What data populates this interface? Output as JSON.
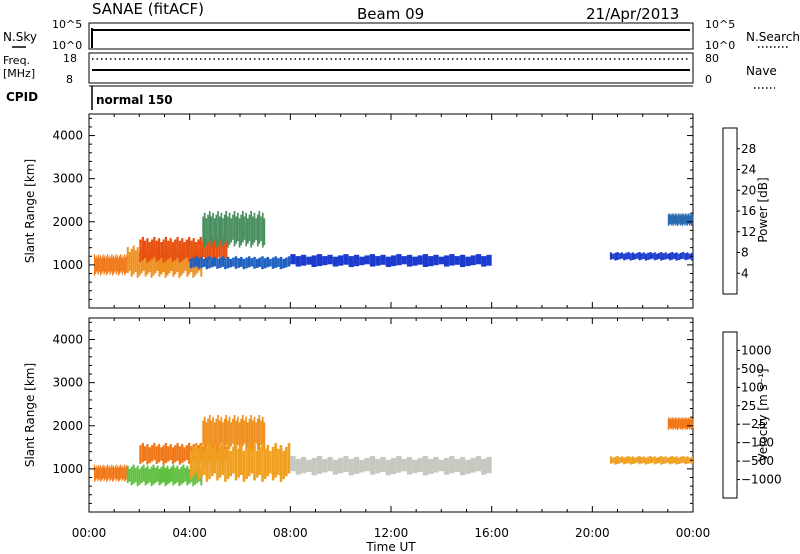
{
  "header": {
    "station": "SANAE (fitACF)",
    "beam": "Beam 09",
    "date": "21/Apr/2013"
  },
  "panels": {
    "nsky": {
      "label": "N.Sky",
      "ticks": [
        "10^5",
        "10^0"
      ],
      "right_ticks": [
        "10^5",
        "10^0"
      ],
      "right_label": "N.Search"
    },
    "freq": {
      "label_top": "Freq.",
      "label_unit": "[MHz]",
      "ticks": [
        "18",
        "8"
      ],
      "right_ticks": [
        "80",
        "0"
      ],
      "right_label": "Nave"
    },
    "cpid": {
      "label": "CPID",
      "mode": "normal 150"
    }
  },
  "chart_data": [
    {
      "type": "heatmap",
      "name": "power",
      "xlabel": "",
      "ylabel": "Slant Range [km]",
      "xlim": [
        0,
        24
      ],
      "ylim": [
        0,
        4500
      ],
      "yticks": [
        1000,
        2000,
        3000,
        4000
      ],
      "xticks_hours": [
        0,
        4,
        8,
        12,
        16,
        20,
        24
      ],
      "colorbar": {
        "label": "Power [dB]",
        "ticks": [
          "4",
          "8",
          "12",
          "16",
          "20",
          "24",
          "28"
        ],
        "colors": [
          "#0020d8",
          "#2d64c8",
          "#3a8070",
          "#40a060",
          "#f0c020",
          "#f09020",
          "#f06010",
          "#e83010",
          "#e00000"
        ]
      },
      "bands": [
        {
          "t0": 0.2,
          "t1": 1.5,
          "r0": 750,
          "r1": 1250,
          "color": "#f07818"
        },
        {
          "t0": 1.5,
          "t1": 4.5,
          "r0": 700,
          "r1": 1450,
          "color": "#f09020"
        },
        {
          "t0": 2.0,
          "t1": 5.5,
          "r0": 1050,
          "r1": 1650,
          "color": "#e85010"
        },
        {
          "t0": 4.5,
          "t1": 7.0,
          "r0": 1400,
          "r1": 2250,
          "color": "#4a9060"
        },
        {
          "t0": 4.0,
          "t1": 8.0,
          "r0": 900,
          "r1": 1200,
          "color": "#2060c0"
        },
        {
          "t0": 8.0,
          "t1": 16.0,
          "r0": 950,
          "r1": 1250,
          "color": "#1c3cd0"
        },
        {
          "t0": 20.7,
          "t1": 24.0,
          "r0": 1100,
          "r1": 1300,
          "color": "#1c3cd0"
        },
        {
          "t0": 23.0,
          "t1": 24.0,
          "r0": 1900,
          "r1": 2200,
          "color": "#2a6ab0"
        }
      ]
    },
    {
      "type": "heatmap",
      "name": "velocity",
      "xlabel": "Time UT",
      "ylabel": "Slant Range [km]",
      "xlim": [
        0,
        24
      ],
      "ylim": [
        0,
        4500
      ],
      "yticks": [
        1000,
        2000,
        3000,
        4000
      ],
      "xticks": [
        "00:00",
        "04:00",
        "08:00",
        "12:00",
        "16:00",
        "20:00",
        "00:00"
      ],
      "colorbar": {
        "label": "Velocity [m s⁻¹]",
        "ticks": [
          "1000",
          "500",
          "100",
          "25",
          "−25",
          "−100",
          "−500",
          "−1000"
        ],
        "colors": [
          "#2038c8",
          "#3070b0",
          "#40a060",
          "#60c040",
          "#c8c8c0",
          "#f0a020",
          "#f07818",
          "#e84010",
          "#e00000"
        ]
      },
      "bands": [
        {
          "t0": 0.2,
          "t1": 1.5,
          "r0": 700,
          "r1": 1100,
          "color": "#f07818"
        },
        {
          "t0": 1.5,
          "t1": 4.5,
          "r0": 600,
          "r1": 1100,
          "color": "#60c040"
        },
        {
          "t0": 2.0,
          "t1": 5.5,
          "r0": 1100,
          "r1": 1600,
          "color": "#f07818"
        },
        {
          "t0": 4.5,
          "t1": 7.0,
          "r0": 1400,
          "r1": 2250,
          "color": "#f09020"
        },
        {
          "t0": 4.0,
          "t1": 8.0,
          "r0": 700,
          "r1": 1600,
          "color": "#f0a020"
        },
        {
          "t0": 8.0,
          "t1": 16.0,
          "r0": 850,
          "r1": 1300,
          "color": "#c8c8c0"
        },
        {
          "t0": 20.7,
          "t1": 24.0,
          "r0": 1100,
          "r1": 1300,
          "color": "#f0a020"
        },
        {
          "t0": 23.0,
          "t1": 24.0,
          "r0": 1900,
          "r1": 2200,
          "color": "#f07818"
        }
      ]
    }
  ]
}
